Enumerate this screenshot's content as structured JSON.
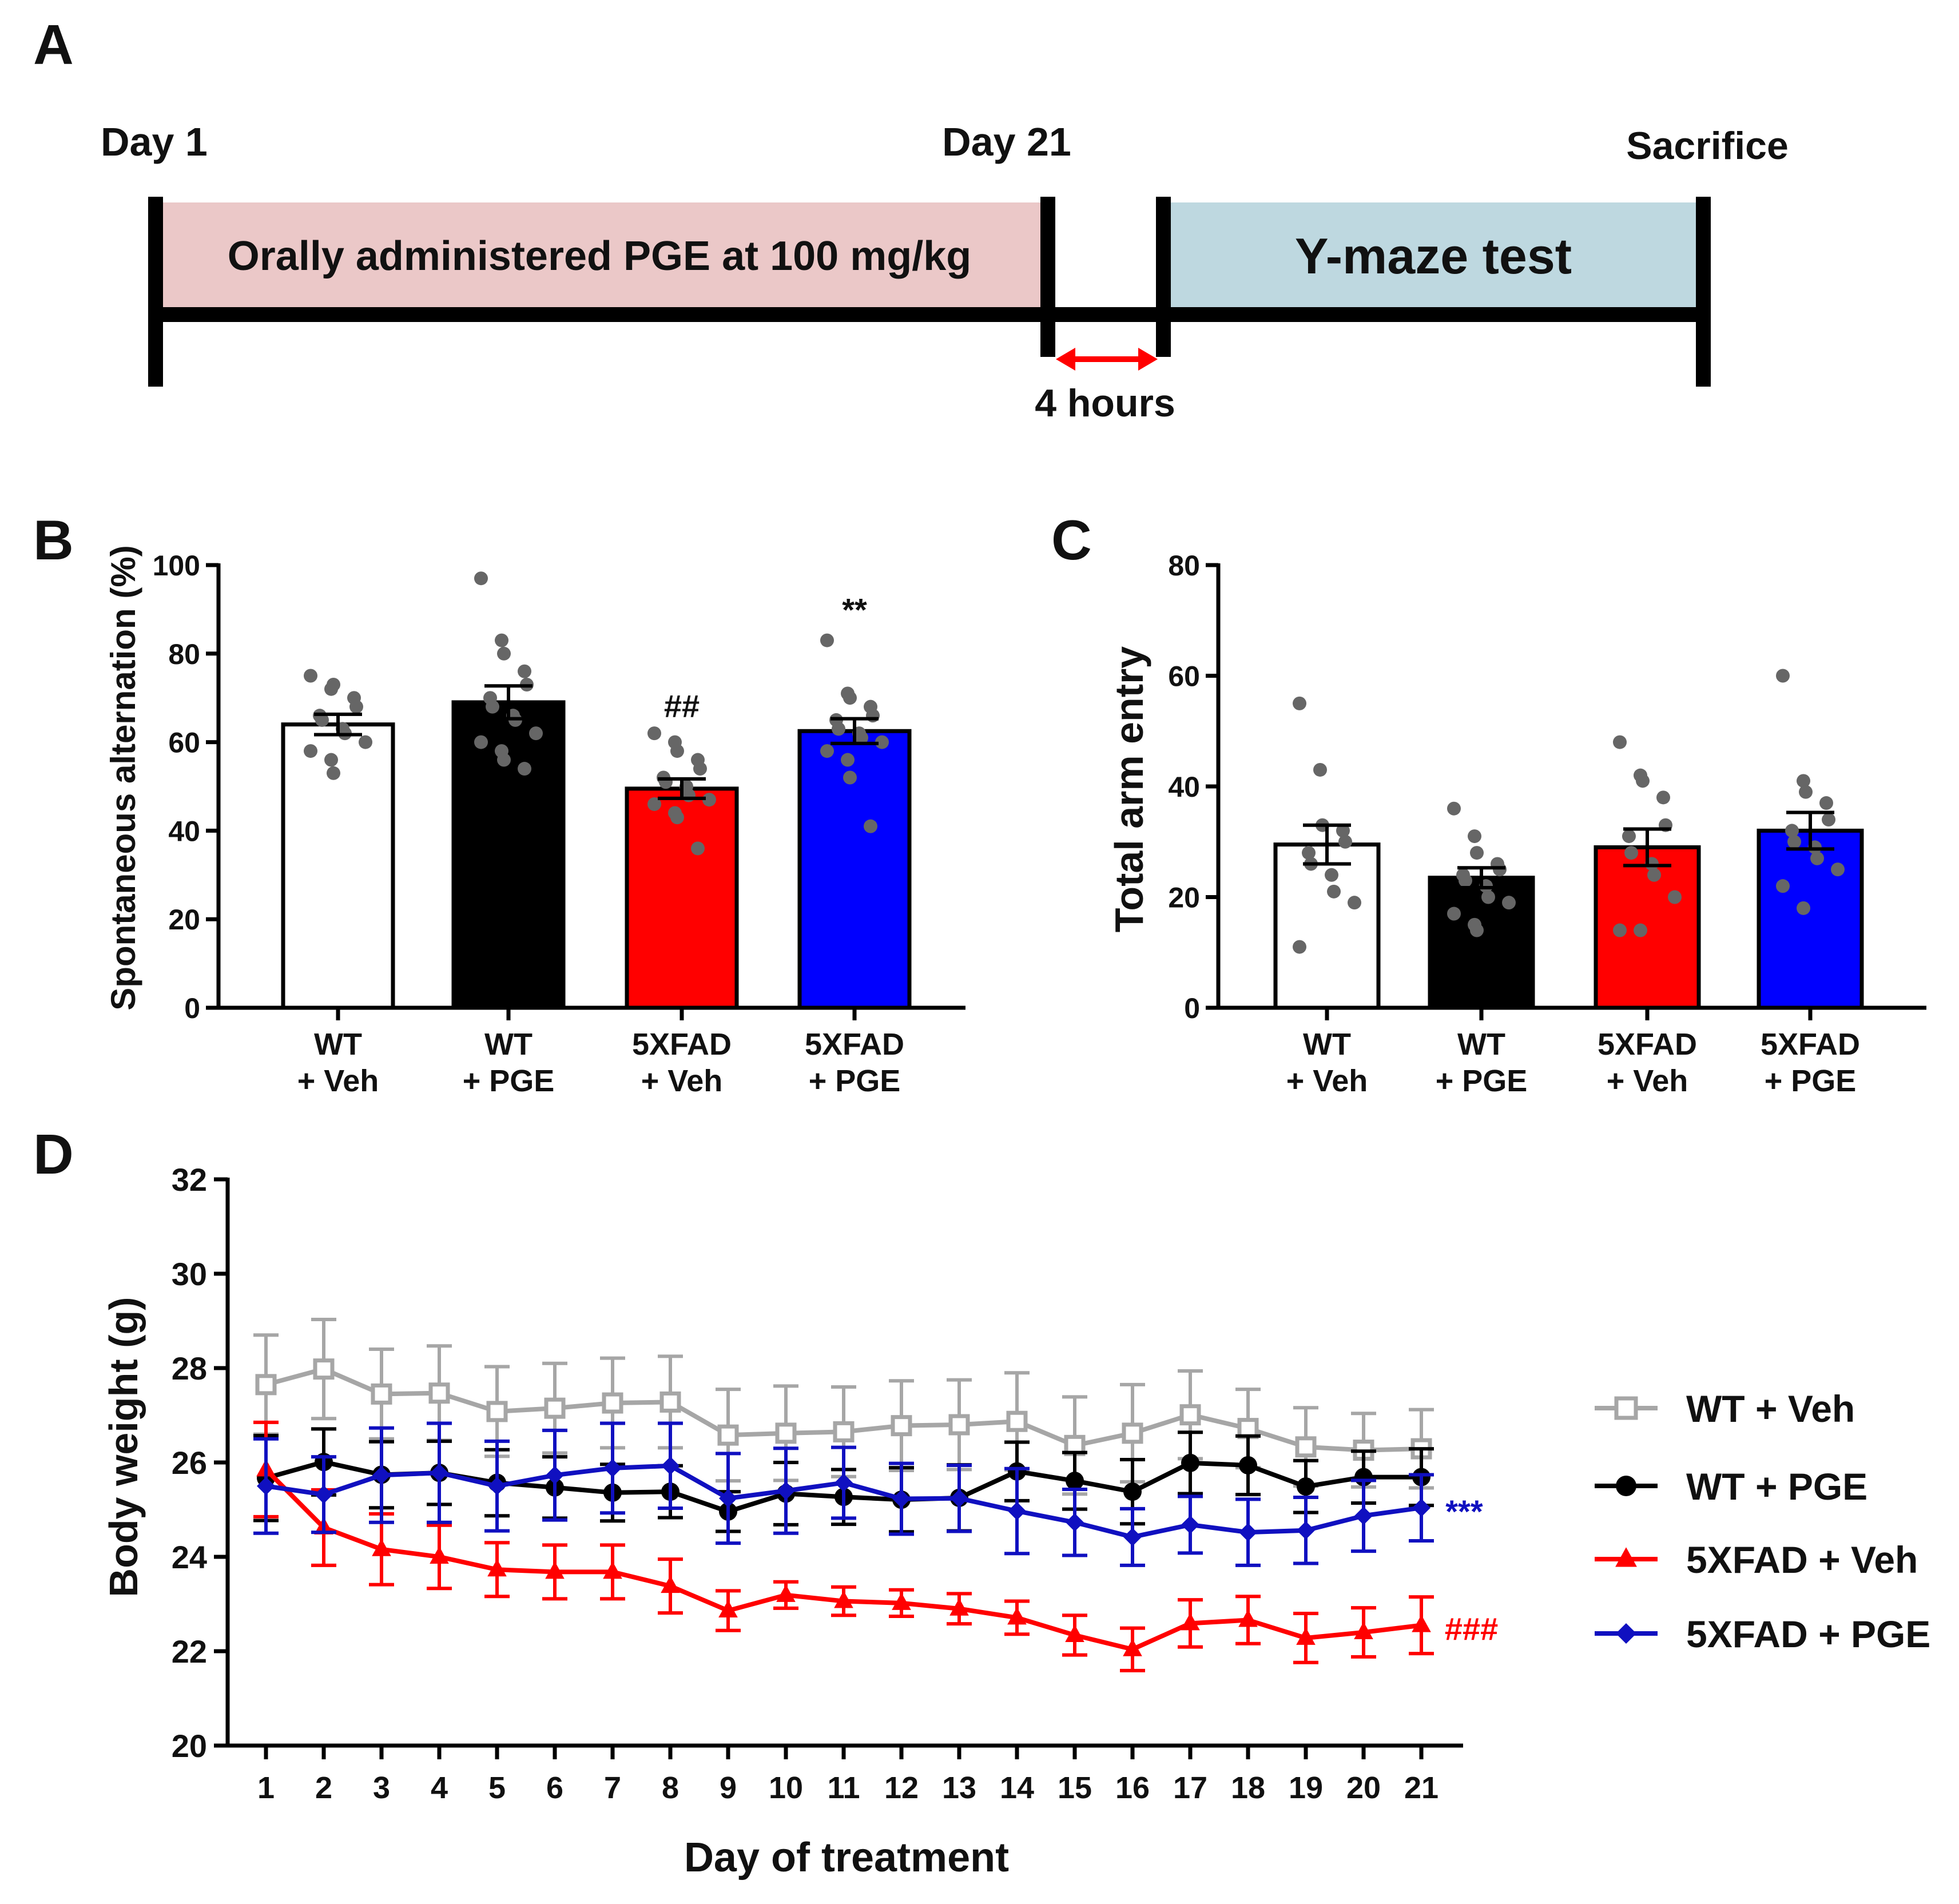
{
  "colors": {
    "wt_veh_bar": "#ffffff",
    "wt_pge_bar": "#000000",
    "xfad_veh_bar": "#ff0000",
    "xfad_pge_bar": "#0000ff",
    "dots": "#666666",
    "wt_veh_line": "#a6a6a6",
    "wt_pge_line": "#000000",
    "xfad_veh_line": "#ff0000",
    "xfad_pge_line": "#1010c0",
    "arrow": "#ff0000",
    "pge_box": "#ebc8c8",
    "ymaze_box": "#bed8e0"
  },
  "panel_a": {
    "label": "A",
    "day1": "Day 1",
    "day21": "Day 21",
    "sacrifice": "Sacrifice",
    "treatment": "Orally administered PGE at 100 mg/kg",
    "test": "Y-maze test",
    "gap": "4 hours"
  },
  "chart_data": [
    {
      "panel": "B",
      "type": "bar",
      "ylabel": "Spontaneous alternation (%)",
      "ylim": [
        0,
        100
      ],
      "yticks": [
        "0",
        "20",
        "40",
        "60",
        "80",
        "100"
      ],
      "categories": [
        [
          "WT",
          "+ Veh"
        ],
        [
          "WT",
          "+ PGE"
        ],
        [
          "5XFAD",
          "+ Veh"
        ],
        [
          "5XFAD",
          "+ PGE"
        ]
      ],
      "values": [
        64,
        69,
        49.5,
        62.5
      ],
      "sem": [
        2.3,
        3.7,
        2.2,
        2.8
      ],
      "annotations": [
        "",
        "",
        "##",
        "**"
      ],
      "points": [
        [
          75,
          72,
          73,
          70,
          68,
          66,
          65,
          63,
          62,
          60,
          58,
          56,
          53
        ],
        [
          97,
          83,
          80,
          76,
          73,
          70,
          68,
          66,
          65,
          62,
          60,
          58,
          56,
          54
        ],
        [
          62,
          60,
          58,
          56,
          54,
          52,
          51,
          50,
          48,
          47,
          46,
          44,
          43,
          36
        ],
        [
          83,
          71,
          70,
          68,
          66,
          65,
          63,
          62,
          61,
          60,
          58,
          56,
          52,
          41
        ]
      ]
    },
    {
      "panel": "C",
      "type": "bar",
      "ylabel": "Total arm entry",
      "ylim": [
        0,
        80
      ],
      "yticks": [
        "0",
        "20",
        "40",
        "60",
        "80"
      ],
      "categories": [
        [
          "WT",
          "+ Veh"
        ],
        [
          "WT",
          "+ PGE"
        ],
        [
          "5XFAD",
          "+ Veh"
        ],
        [
          "5XFAD",
          "+ PGE"
        ]
      ],
      "values": [
        29.5,
        23.5,
        29,
        32
      ],
      "sem": [
        3.5,
        1.8,
        3.3,
        3.3
      ],
      "annotations": [
        "",
        "",
        "",
        ""
      ],
      "points": [
        [
          55,
          43,
          33,
          32,
          30,
          28,
          26,
          24,
          21,
          19,
          11
        ],
        [
          36,
          31,
          28,
          26,
          25,
          24,
          23,
          22,
          20,
          19,
          17,
          15,
          14
        ],
        [
          48,
          42,
          41,
          38,
          33,
          31,
          28,
          26,
          24,
          20,
          14,
          14
        ],
        [
          60,
          41,
          39,
          37,
          34,
          32,
          30,
          29,
          27,
          25,
          22,
          18
        ]
      ]
    },
    {
      "panel": "D",
      "type": "line",
      "xlabel": "Day of treatment",
      "ylabel": "Body weight (g)",
      "ylim": [
        20,
        32
      ],
      "yticks": [
        "20",
        "22",
        "24",
        "26",
        "28",
        "30",
        "32"
      ],
      "x": [
        1,
        2,
        3,
        4,
        5,
        6,
        7,
        8,
        9,
        10,
        11,
        12,
        13,
        14,
        15,
        16,
        17,
        18,
        19,
        20,
        21
      ],
      "series": [
        {
          "name": "WT + Veh",
          "marker": "square",
          "values": [
            27.65,
            27.98,
            27.45,
            27.47,
            27.08,
            27.15,
            27.26,
            27.28,
            26.58,
            26.62,
            26.65,
            26.78,
            26.8,
            26.87,
            26.36,
            26.62,
            27.01,
            26.72,
            26.33,
            26.26,
            26.29
          ],
          "sem": [
            1.05,
            1.05,
            0.95,
            1.0,
            0.95,
            0.95,
            0.95,
            0.97,
            0.97,
            1.0,
            0.95,
            0.95,
            0.95,
            1.03,
            1.03,
            1.03,
            0.93,
            0.83,
            0.83,
            0.78,
            0.83
          ]
        },
        {
          "name": "WT + PGE",
          "marker": "circle",
          "values": [
            25.67,
            26.01,
            25.74,
            25.78,
            25.57,
            25.47,
            25.36,
            25.38,
            24.96,
            25.34,
            25.27,
            25.21,
            25.25,
            25.81,
            25.61,
            25.38,
            25.99,
            25.94,
            25.49,
            25.69,
            25.69
          ],
          "sem": [
            0.9,
            0.7,
            0.7,
            0.67,
            0.7,
            0.65,
            0.6,
            0.55,
            0.42,
            0.66,
            0.58,
            0.68,
            0.7,
            0.62,
            0.6,
            0.68,
            0.65,
            0.62,
            0.55,
            0.55,
            0.6
          ]
        },
        {
          "name": "5XFAD + Veh",
          "marker": "triangle",
          "values": [
            25.85,
            24.62,
            24.16,
            24.0,
            23.73,
            23.68,
            23.68,
            23.38,
            22.86,
            23.19,
            23.06,
            23.02,
            22.9,
            22.71,
            22.34,
            22.04,
            22.59,
            22.66,
            22.28,
            22.4,
            22.55
          ],
          "sem": [
            1.0,
            0.8,
            0.75,
            0.67,
            0.57,
            0.57,
            0.57,
            0.57,
            0.42,
            0.28,
            0.3,
            0.28,
            0.32,
            0.35,
            0.42,
            0.45,
            0.5,
            0.5,
            0.52,
            0.52,
            0.6
          ]
        },
        {
          "name": "5XFAD + PGE",
          "marker": "diamond",
          "values": [
            25.5,
            25.32,
            25.73,
            25.78,
            25.5,
            25.73,
            25.88,
            25.93,
            25.24,
            25.4,
            25.57,
            25.23,
            25.24,
            24.97,
            24.73,
            24.42,
            24.68,
            24.52,
            24.56,
            24.87,
            25.04
          ],
          "sem": [
            1.0,
            0.8,
            1.0,
            1.05,
            0.95,
            0.95,
            0.95,
            0.9,
            0.95,
            0.9,
            0.75,
            0.75,
            0.7,
            0.9,
            0.7,
            0.6,
            0.6,
            0.7,
            0.7,
            0.75,
            0.7
          ]
        }
      ],
      "annotations": [
        {
          "series": "5XFAD + PGE",
          "text": "***"
        },
        {
          "series": "5XFAD + Veh",
          "text": "###"
        }
      ]
    }
  ]
}
